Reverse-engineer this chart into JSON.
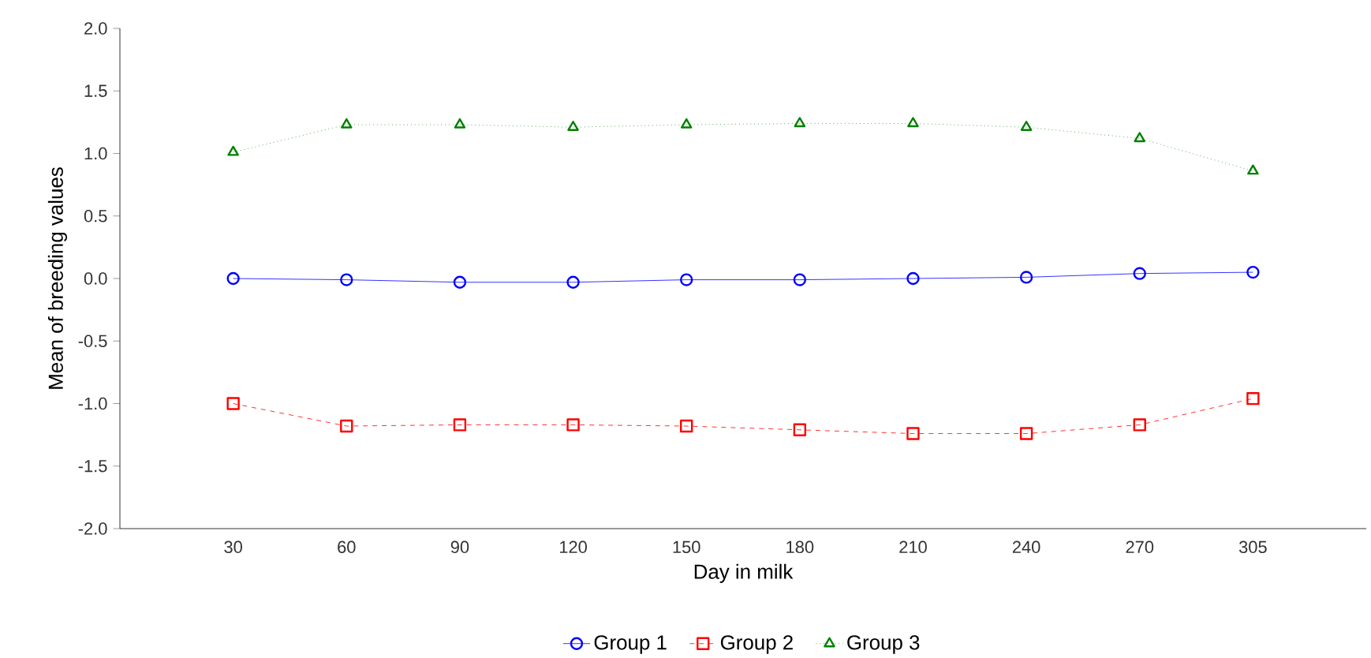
{
  "chart_data": {
    "type": "line",
    "xlabel": "Day in milk",
    "ylabel": "Mean of breeding values",
    "categories": [
      "30",
      "60",
      "90",
      "120",
      "150",
      "180",
      "210",
      "240",
      "270",
      "305"
    ],
    "series": [
      {
        "name": "Group 1",
        "color": "#0000ff",
        "marker": "circle",
        "line_style": "solid",
        "values": [
          0,
          -0.01,
          -0.03,
          -0.03,
          -0.01,
          -0.01,
          0,
          0.01,
          0.04,
          0.05
        ]
      },
      {
        "name": "Group 2",
        "color": "#ff0000",
        "marker": "square",
        "line_style": "dashed",
        "values": [
          -1.0,
          -1.18,
          -1.17,
          -1.17,
          -1.18,
          -1.21,
          -1.24,
          -1.24,
          -1.17,
          -0.96
        ]
      },
      {
        "name": "Group 3",
        "color": "#008000",
        "marker": "triangle",
        "line_style": "dotted",
        "values": [
          1.01,
          1.23,
          1.23,
          1.21,
          1.23,
          1.24,
          1.24,
          1.21,
          1.12,
          0.86
        ]
      }
    ],
    "ylim": [
      -2,
      2
    ],
    "yticks": [
      {
        "value": -2,
        "label": "-2.0"
      },
      {
        "value": -1.5,
        "label": "-1.5"
      },
      {
        "value": -1,
        "label": "-1.0"
      },
      {
        "value": -0.5,
        "label": "-0.5"
      },
      {
        "value": 0,
        "label": "0.0"
      },
      {
        "value": 0.5,
        "label": "0.5"
      },
      {
        "value": 1,
        "label": "1.0"
      },
      {
        "value": 1.5,
        "label": "1.5"
      },
      {
        "value": 2,
        "label": "2.0"
      }
    ],
    "grid": false,
    "legend": "bottom"
  }
}
